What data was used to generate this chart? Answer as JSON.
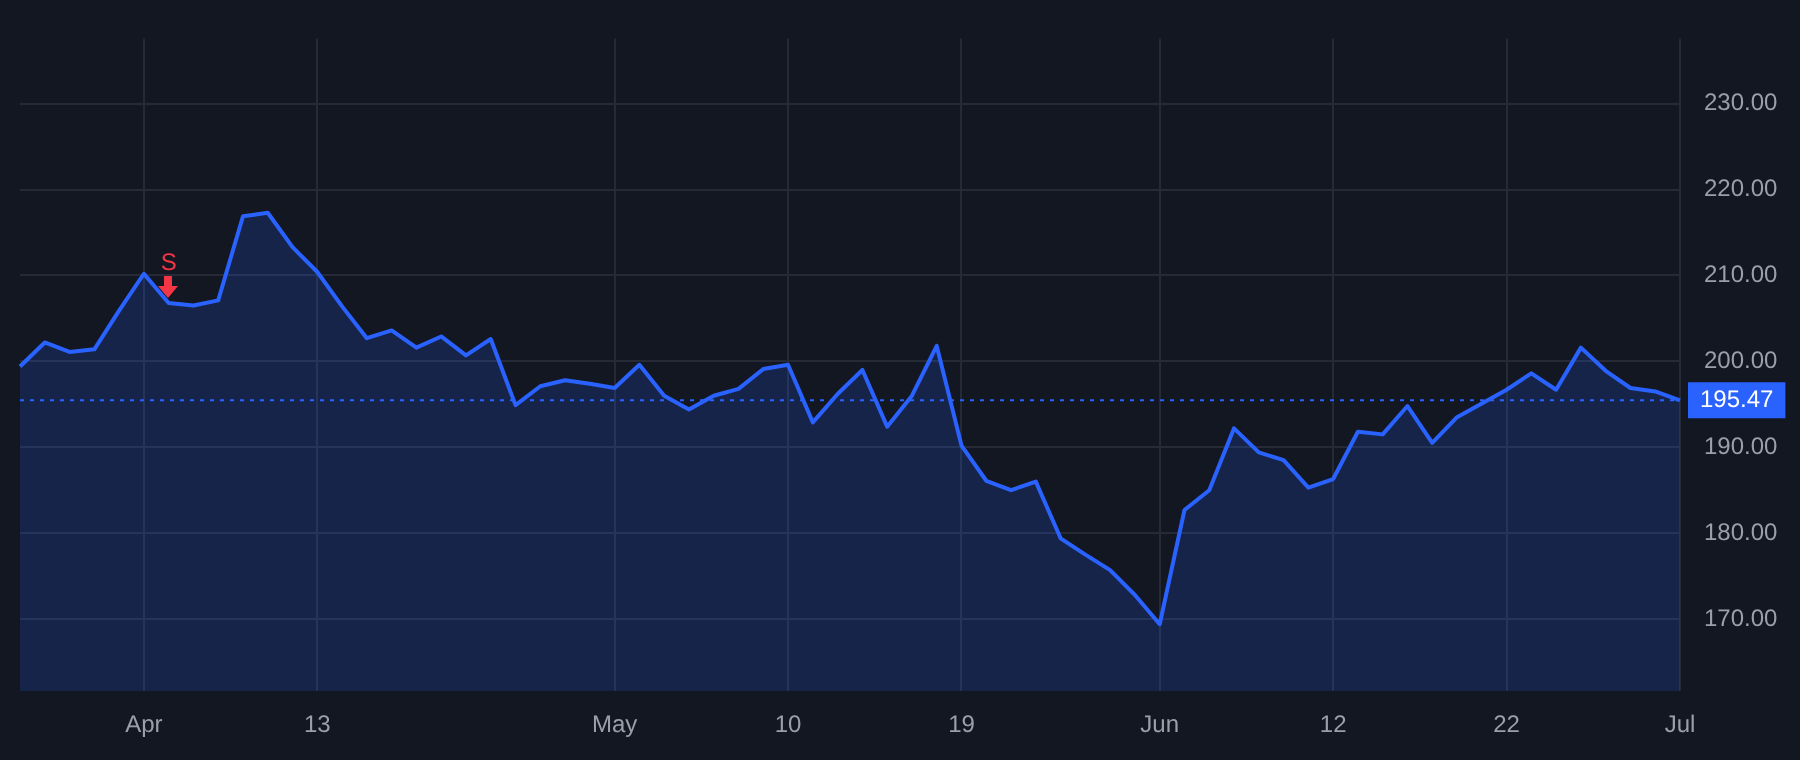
{
  "chart_data": {
    "type": "area",
    "categories": [
      null,
      null,
      null,
      null,
      null,
      "Apr",
      null,
      null,
      null,
      null,
      null,
      null,
      "13",
      null,
      null,
      null,
      null,
      null,
      null,
      null,
      null,
      null,
      null,
      null,
      "May",
      null,
      null,
      null,
      null,
      null,
      null,
      "10",
      null,
      null,
      null,
      null,
      null,
      null,
      "19",
      null,
      null,
      null,
      null,
      null,
      null,
      null,
      "Jun",
      null,
      null,
      null,
      null,
      null,
      null,
      "12",
      null,
      null,
      null,
      null,
      null,
      null,
      "22",
      null,
      null,
      null,
      null,
      null,
      null,
      "Jul"
    ],
    "series": [
      {
        "color": "#2962ff",
        "values": [
          199.4,
          202.2,
          201.1,
          201.4,
          205.9,
          210.2,
          206.8,
          206.5,
          207.1,
          216.9,
          217.3,
          213.3,
          210.4,
          206.4,
          202.7,
          203.6,
          201.6,
          202.9,
          200.7,
          202.6,
          194.9,
          197.1,
          197.8,
          197.4,
          196.9,
          199.6,
          196.0,
          194.4,
          196.0,
          196.8,
          199.1,
          199.6,
          192.9,
          196.2,
          199.0,
          192.4,
          196.0,
          201.8,
          190.2,
          186.1,
          185.0,
          186.0,
          179.4,
          177.5,
          175.7,
          172.8,
          169.4,
          182.7,
          185.0,
          192.2,
          189.4,
          188.5,
          185.3,
          186.3,
          191.8,
          191.5,
          194.8,
          190.5,
          193.5,
          195.1,
          196.7,
          198.6,
          196.7,
          201.6,
          198.9,
          196.9,
          196.5,
          195.47
        ]
      }
    ],
    "ylim": [
      161.6,
      237.6
    ],
    "yticks": [
      {
        "value": 170,
        "label": "170.00"
      },
      {
        "value": 180,
        "label": "180.00"
      },
      {
        "value": 190,
        "label": "190.00"
      },
      {
        "value": 200,
        "label": "200.00"
      },
      {
        "value": 210,
        "label": "210.00"
      },
      {
        "value": 220,
        "label": "220.00"
      },
      {
        "value": 230,
        "label": "230.00"
      }
    ],
    "grid": true,
    "ref_lines": [
      {
        "axis": "y",
        "value": 195.47,
        "label": "195.47",
        "color": "#2962ff",
        "line_style": "dotted"
      }
    ],
    "annotations": [
      {
        "text": "S",
        "y": 206.8
      }
    ]
  }
}
